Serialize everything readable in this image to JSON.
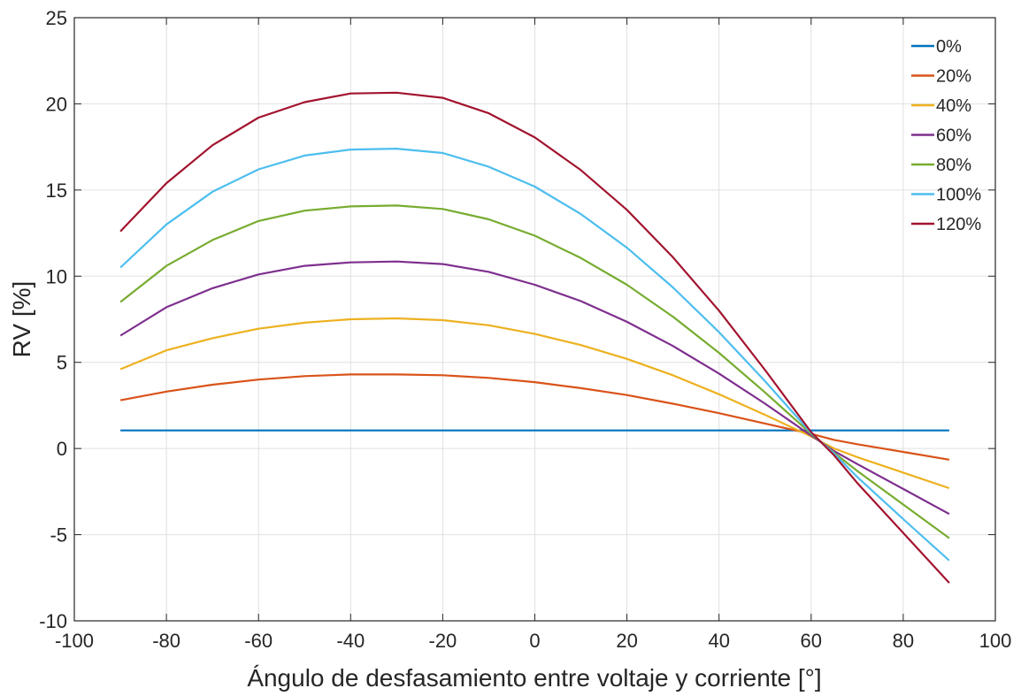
{
  "chart_data": {
    "type": "line",
    "xlabel": "Ángulo de desfasamiento entre voltaje y corriente [°]",
    "ylabel": "RV [%]",
    "xlim": [
      -100,
      100
    ],
    "ylim": [
      -10,
      25
    ],
    "xticks": [
      -100,
      -80,
      -60,
      -40,
      -20,
      0,
      20,
      40,
      60,
      80,
      100
    ],
    "yticks": [
      -10,
      -5,
      0,
      5,
      10,
      15,
      20,
      25
    ],
    "grid": true,
    "legend_position": "top-right",
    "x": [
      -90,
      -80,
      -70,
      -60,
      -50,
      -40,
      -30,
      -20,
      -10,
      0,
      10,
      20,
      30,
      40,
      50,
      60,
      65,
      70,
      80,
      90
    ],
    "series": [
      {
        "name": "0%",
        "color": "#0072BD",
        "values": [
          1.05,
          1.05,
          1.05,
          1.05,
          1.05,
          1.05,
          1.05,
          1.05,
          1.05,
          1.05,
          1.05,
          1.05,
          1.05,
          1.05,
          1.05,
          1.05,
          1.05,
          1.05,
          1.05,
          1.05
        ]
      },
      {
        "name": "20%",
        "color": "#D95319",
        "values": [
          2.8,
          3.3,
          3.7,
          4.0,
          4.2,
          4.3,
          4.3,
          4.25,
          4.1,
          3.85,
          3.5,
          3.1,
          2.6,
          2.05,
          1.45,
          0.85,
          0.5,
          0.25,
          -0.2,
          -0.65
        ]
      },
      {
        "name": "40%",
        "color": "#EDB120",
        "values": [
          4.6,
          5.7,
          6.4,
          6.95,
          7.3,
          7.5,
          7.55,
          7.45,
          7.15,
          6.65,
          6.0,
          5.2,
          4.25,
          3.15,
          1.95,
          0.7,
          0.0,
          -0.5,
          -1.4,
          -2.3
        ]
      },
      {
        "name": "60%",
        "color": "#7E2F8E",
        "values": [
          6.55,
          8.2,
          9.3,
          10.1,
          10.6,
          10.8,
          10.85,
          10.7,
          10.25,
          9.5,
          8.55,
          7.35,
          5.95,
          4.35,
          2.6,
          0.75,
          -0.15,
          -0.9,
          -2.35,
          -3.8
        ]
      },
      {
        "name": "80%",
        "color": "#77AC30",
        "values": [
          8.5,
          10.6,
          12.1,
          13.2,
          13.8,
          14.05,
          14.1,
          13.9,
          13.3,
          12.35,
          11.05,
          9.5,
          7.65,
          5.55,
          3.25,
          0.85,
          -0.25,
          -1.3,
          -3.25,
          -5.2
        ]
      },
      {
        "name": "100%",
        "color": "#4DBEEE",
        "values": [
          10.5,
          13.0,
          14.9,
          16.2,
          17.0,
          17.35,
          17.4,
          17.15,
          16.35,
          15.2,
          13.6,
          11.65,
          9.35,
          6.75,
          3.9,
          0.9,
          -0.3,
          -1.65,
          -4.1,
          -6.5
        ]
      },
      {
        "name": "120%",
        "color": "#A2142F",
        "values": [
          12.6,
          15.4,
          17.6,
          19.2,
          20.1,
          20.6,
          20.65,
          20.35,
          19.45,
          18.05,
          16.15,
          13.85,
          11.1,
          8.0,
          4.55,
          0.95,
          -0.4,
          -2.0,
          -4.9,
          -7.8
        ]
      }
    ]
  }
}
